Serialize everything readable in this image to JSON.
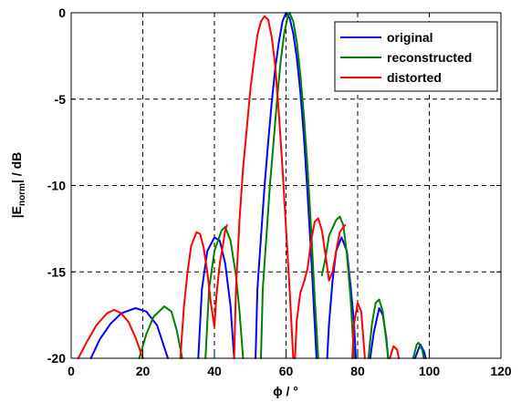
{
  "chart_data": {
    "type": "line",
    "xlabel": "ϕ / °",
    "ylabel": "|E_norm| / dB",
    "ylabel_main": "|E",
    "ylabel_sub": "norm",
    "ylabel_tail": "| / dB",
    "xlim": [
      0,
      120
    ],
    "ylim": [
      -20,
      0
    ],
    "xticks": [
      0,
      20,
      40,
      60,
      80,
      100,
      120
    ],
    "yticks": [
      0,
      -5,
      -10,
      -15,
      -20
    ],
    "xtick_labels": [
      "0",
      "20",
      "40",
      "60",
      "80",
      "100",
      "120"
    ],
    "ytick_labels": [
      "0",
      "-5",
      "-10",
      "-15",
      "-20"
    ],
    "grid": true,
    "legend_position": "top-right",
    "series": [
      {
        "name": "original",
        "color": "#0000ff",
        "segments": [
          [
            [
              5.5,
              -20
            ],
            [
              8,
              -18.9
            ],
            [
              11,
              -18
            ],
            [
              14,
              -17.4
            ],
            [
              18,
              -17.1
            ],
            [
              21,
              -17.3
            ],
            [
              24,
              -18.1
            ],
            [
              27,
              -20
            ]
          ],
          [
            [
              35.5,
              -20
            ],
            [
              36.5,
              -16
            ],
            [
              38,
              -13.8
            ],
            [
              40,
              -13.0
            ],
            [
              41.5,
              -13.2
            ],
            [
              43,
              -14.5
            ],
            [
              44.5,
              -17
            ],
            [
              45.5,
              -20
            ]
          ],
          [
            [
              51.5,
              -20
            ],
            [
              52,
              -16
            ],
            [
              53,
              -13
            ],
            [
              54,
              -10
            ],
            [
              55,
              -7.5
            ],
            [
              56,
              -5.2
            ],
            [
              57,
              -3.2
            ],
            [
              58,
              -1.7
            ],
            [
              59,
              -0.5
            ],
            [
              60,
              0
            ],
            [
              61,
              -0.3
            ],
            [
              62,
              -1.2
            ],
            [
              63,
              -2.6
            ],
            [
              64,
              -4.6
            ],
            [
              65,
              -7.2
            ],
            [
              66,
              -10.5
            ],
            [
              67,
              -14
            ],
            [
              68,
              -18
            ],
            [
              68.5,
              -20
            ]
          ],
          [
            [
              71.5,
              -20
            ],
            [
              72,
              -18
            ],
            [
              73,
              -15.5
            ],
            [
              74,
              -13.8
            ],
            [
              75.5,
              -13.0
            ],
            [
              77,
              -13.8
            ],
            [
              78,
              -15.8
            ],
            [
              79,
              -18
            ],
            [
              79.5,
              -20
            ]
          ],
          [
            [
              83.5,
              -20
            ],
            [
              84.5,
              -18.5
            ],
            [
              86,
              -17.1
            ],
            [
              87,
              -17.5
            ],
            [
              88,
              -18.8
            ],
            [
              88.5,
              -20
            ]
          ],
          [
            [
              96,
              -20
            ],
            [
              97.5,
              -19.2
            ],
            [
              98.5,
              -19.6
            ],
            [
              99,
              -20
            ]
          ]
        ]
      },
      {
        "name": "reconstructed",
        "color": "#008000",
        "segments": [
          [
            [
              19,
              -20
            ],
            [
              21,
              -18.6
            ],
            [
              23,
              -17.6
            ],
            [
              26,
              -17.0
            ],
            [
              28,
              -17.3
            ],
            [
              29.5,
              -18.4
            ],
            [
              31,
              -20
            ]
          ],
          [
            [
              37.5,
              -20
            ],
            [
              38.5,
              -16
            ],
            [
              40,
              -13.8
            ],
            [
              42,
              -12.6
            ],
            [
              43,
              -12.4
            ],
            [
              44.5,
              -13.2
            ],
            [
              46,
              -15.2
            ],
            [
              47,
              -17.3
            ],
            [
              48,
              -20
            ]
          ],
          [
            [
              53,
              -20
            ],
            [
              53.5,
              -16
            ],
            [
              54.5,
              -13
            ],
            [
              55.5,
              -10
            ],
            [
              56.5,
              -7.5
            ],
            [
              57.5,
              -5
            ],
            [
              58.5,
              -2.8
            ],
            [
              59.5,
              -1.2
            ],
            [
              60.5,
              -0.2
            ],
            [
              61,
              0
            ],
            [
              62,
              -0.5
            ],
            [
              63,
              -1.7
            ],
            [
              64,
              -3.6
            ],
            [
              65,
              -6
            ],
            [
              66,
              -9
            ],
            [
              67,
              -12.5
            ],
            [
              68,
              -16.5
            ],
            [
              69,
              -20
            ]
          ],
          [
            [
              70,
              -15.2
            ],
            [
              71,
              -14.2
            ],
            [
              72,
              -12.9
            ],
            [
              74,
              -12.0
            ],
            [
              75,
              -11.8
            ],
            [
              76,
              -12.3
            ],
            [
              77,
              -14
            ],
            [
              78,
              -16.5
            ],
            [
              79,
              -20
            ]
          ],
          [
            [
              83,
              -20
            ],
            [
              84,
              -18
            ],
            [
              85,
              -16.8
            ],
            [
              86,
              -16.6
            ],
            [
              87,
              -17.3
            ],
            [
              88,
              -19
            ],
            [
              88.5,
              -20
            ]
          ],
          [
            [
              95.5,
              -20
            ],
            [
              96.5,
              -19.2
            ],
            [
              97,
              -19.1
            ],
            [
              98,
              -19.5
            ],
            [
              98.5,
              -20
            ]
          ]
        ]
      },
      {
        "name": "distorted",
        "color": "#ff0000",
        "segments": [
          [
            [
              2,
              -20
            ],
            [
              4,
              -19.2
            ],
            [
              7,
              -18.1
            ],
            [
              10,
              -17.4
            ],
            [
              12,
              -17.2
            ],
            [
              14,
              -17.4
            ],
            [
              16,
              -17.9
            ],
            [
              18,
              -18.8
            ],
            [
              20,
              -20
            ]
          ],
          [
            [
              30.5,
              -20
            ],
            [
              31.5,
              -17
            ],
            [
              32.5,
              -15
            ],
            [
              33.5,
              -13.5
            ],
            [
              35,
              -12.7
            ],
            [
              36,
              -12.8
            ],
            [
              37,
              -13.6
            ],
            [
              38,
              -15
            ],
            [
              39,
              -16.8
            ],
            [
              40,
              -18.2
            ],
            [
              40.5,
              -16.5
            ],
            [
              41.5,
              -14.5
            ],
            [
              42.5,
              -13.3
            ],
            [
              43,
              -12.6
            ],
            [
              43.5,
              -12.3
            ]
          ],
          [
            [
              45.5,
              -20
            ],
            [
              46,
              -16
            ],
            [
              47,
              -12
            ],
            [
              48,
              -9
            ],
            [
              49,
              -6.8
            ],
            [
              50,
              -4.5
            ],
            [
              51,
              -2.8
            ],
            [
              52,
              -1.3
            ],
            [
              53,
              -0.5
            ],
            [
              54,
              -0.2
            ],
            [
              55,
              -0.4
            ],
            [
              56,
              -1.4
            ],
            [
              57,
              -3.1
            ],
            [
              58,
              -5.8
            ],
            [
              59,
              -9
            ],
            [
              60,
              -12.5
            ],
            [
              61,
              -16
            ],
            [
              62,
              -20
            ]
          ],
          [
            [
              62.5,
              -20
            ],
            [
              63,
              -17.8
            ],
            [
              64,
              -16.2
            ],
            [
              65,
              -15.6
            ],
            [
              66,
              -14.8
            ],
            [
              67,
              -13.2
            ],
            [
              68,
              -12.1
            ],
            [
              69,
              -11.9
            ],
            [
              70,
              -12.6
            ],
            [
              71,
              -14
            ],
            [
              72,
              -15.5
            ],
            [
              73,
              -15.0
            ],
            [
              74,
              -13.8
            ],
            [
              75,
              -12.7
            ],
            [
              76,
              -12.4
            ],
            [
              76.5,
              -12.3
            ]
          ],
          [
            [
              78.5,
              -20
            ],
            [
              79,
              -18
            ],
            [
              80,
              -16.8
            ],
            [
              81,
              -17.3
            ],
            [
              82,
              -20
            ]
          ],
          [
            [
              89,
              -20
            ],
            [
              90,
              -19.3
            ],
            [
              91,
              -19.5
            ],
            [
              91.5,
              -20
            ]
          ]
        ]
      }
    ]
  }
}
